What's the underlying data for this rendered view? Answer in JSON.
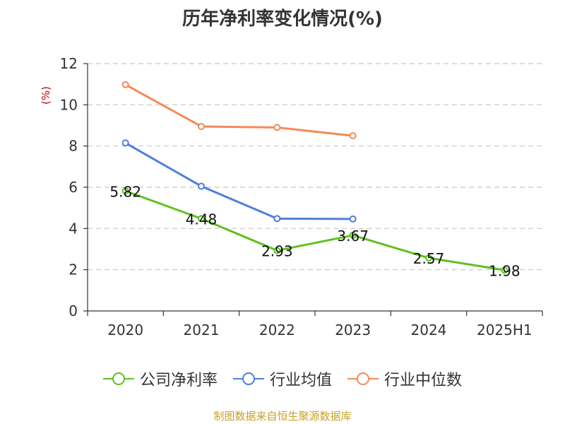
{
  "chart_data": {
    "type": "line",
    "title": "历年净利率变化情况(%)",
    "ylabel": "(%)",
    "categories": [
      "2020",
      "2021",
      "2022",
      "2023",
      "2024",
      "2025H1"
    ],
    "ylim": [
      0,
      12
    ],
    "yticks": [
      0,
      2,
      4,
      6,
      8,
      10,
      12
    ],
    "grid": true,
    "legend_position": "bottom",
    "series": [
      {
        "name": "公司净利率",
        "color": "#5fc11f",
        "values": [
          5.82,
          4.48,
          2.93,
          3.67,
          2.57,
          1.98
        ],
        "labels": [
          "5.82",
          "4.48",
          "2.93",
          "3.67",
          "2.57",
          "1.98"
        ]
      },
      {
        "name": "行业均值",
        "color": "#4e7fdc",
        "values": [
          8.15,
          6.05,
          4.48,
          4.46,
          null,
          null
        ]
      },
      {
        "name": "行业中位数",
        "color": "#f28b57",
        "values": [
          10.98,
          8.95,
          8.9,
          8.5,
          null,
          null
        ]
      }
    ]
  },
  "source_text": "制图数据来自恒生聚源数据库"
}
